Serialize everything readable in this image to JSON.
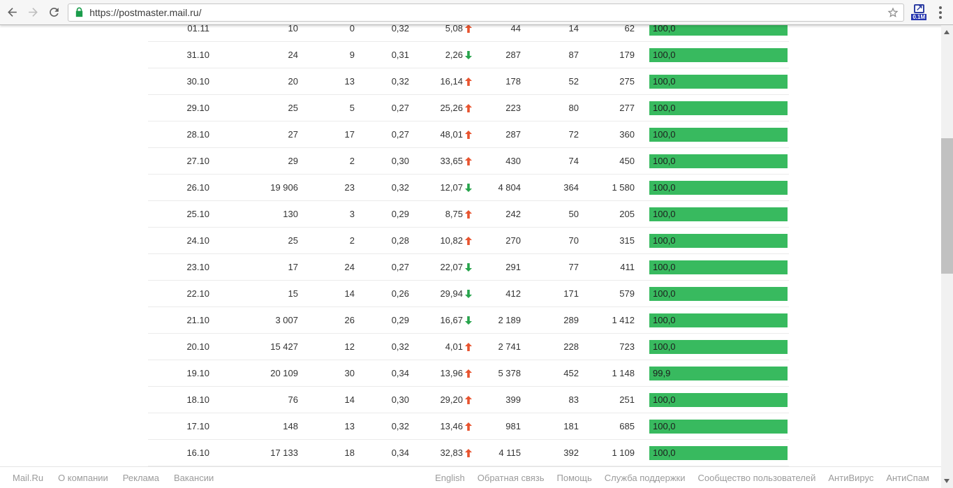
{
  "browser": {
    "url": "https://postmaster.mail.ru/",
    "extension_badge": "0.1M"
  },
  "colors": {
    "bar_green": "#38ba5f",
    "arrow_up": "#e8542f",
    "arrow_down": "#28a44c"
  },
  "table": {
    "rows": [
      {
        "date": "01.11",
        "c1": "10",
        "c2": "0",
        "c3": "0,32",
        "pct": "5,08",
        "pct_dir": "up",
        "c4": "44",
        "c5": "14",
        "c6": "62",
        "bar_label": "100,0",
        "bar_value": 100
      },
      {
        "date": "31.10",
        "c1": "24",
        "c2": "9",
        "c3": "0,31",
        "pct": "2,26",
        "pct_dir": "down",
        "c4": "287",
        "c5": "87",
        "c6": "179",
        "bar_label": "100,0",
        "bar_value": 100
      },
      {
        "date": "30.10",
        "c1": "20",
        "c2": "13",
        "c3": "0,32",
        "pct": "16,14",
        "pct_dir": "up",
        "c4": "178",
        "c5": "52",
        "c6": "275",
        "bar_label": "100,0",
        "bar_value": 100
      },
      {
        "date": "29.10",
        "c1": "25",
        "c2": "5",
        "c3": "0,27",
        "pct": "25,26",
        "pct_dir": "up",
        "c4": "223",
        "c5": "80",
        "c6": "277",
        "bar_label": "100,0",
        "bar_value": 100
      },
      {
        "date": "28.10",
        "c1": "27",
        "c2": "17",
        "c3": "0,27",
        "pct": "48,01",
        "pct_dir": "up",
        "c4": "287",
        "c5": "72",
        "c6": "360",
        "bar_label": "100,0",
        "bar_value": 100
      },
      {
        "date": "27.10",
        "c1": "29",
        "c2": "2",
        "c3": "0,30",
        "pct": "33,65",
        "pct_dir": "up",
        "c4": "430",
        "c5": "74",
        "c6": "450",
        "bar_label": "100,0",
        "bar_value": 100
      },
      {
        "date": "26.10",
        "c1": "19 906",
        "c2": "23",
        "c3": "0,32",
        "pct": "12,07",
        "pct_dir": "down",
        "c4": "4 804",
        "c5": "364",
        "c6": "1 580",
        "bar_label": "100,0",
        "bar_value": 100
      },
      {
        "date": "25.10",
        "c1": "130",
        "c2": "3",
        "c3": "0,29",
        "pct": "8,75",
        "pct_dir": "up",
        "c4": "242",
        "c5": "50",
        "c6": "205",
        "bar_label": "100,0",
        "bar_value": 100
      },
      {
        "date": "24.10",
        "c1": "25",
        "c2": "2",
        "c3": "0,28",
        "pct": "10,82",
        "pct_dir": "up",
        "c4": "270",
        "c5": "70",
        "c6": "315",
        "bar_label": "100,0",
        "bar_value": 100
      },
      {
        "date": "23.10",
        "c1": "17",
        "c2": "24",
        "c3": "0,27",
        "pct": "22,07",
        "pct_dir": "down",
        "c4": "291",
        "c5": "77",
        "c6": "411",
        "bar_label": "100,0",
        "bar_value": 100
      },
      {
        "date": "22.10",
        "c1": "15",
        "c2": "14",
        "c3": "0,26",
        "pct": "29,94",
        "pct_dir": "down",
        "c4": "412",
        "c5": "171",
        "c6": "579",
        "bar_label": "100,0",
        "bar_value": 100
      },
      {
        "date": "21.10",
        "c1": "3 007",
        "c2": "26",
        "c3": "0,29",
        "pct": "16,67",
        "pct_dir": "down",
        "c4": "2 189",
        "c5": "289",
        "c6": "1 412",
        "bar_label": "100,0",
        "bar_value": 100
      },
      {
        "date": "20.10",
        "c1": "15 427",
        "c2": "12",
        "c3": "0,32",
        "pct": "4,01",
        "pct_dir": "up",
        "c4": "2 741",
        "c5": "228",
        "c6": "723",
        "bar_label": "100,0",
        "bar_value": 100
      },
      {
        "date": "19.10",
        "c1": "20 109",
        "c2": "30",
        "c3": "0,34",
        "pct": "13,96",
        "pct_dir": "up",
        "c4": "5 378",
        "c5": "452",
        "c6": "1 148",
        "bar_label": "99,9",
        "bar_value": 99.9
      },
      {
        "date": "18.10",
        "c1": "76",
        "c2": "14",
        "c3": "0,30",
        "pct": "29,20",
        "pct_dir": "up",
        "c4": "399",
        "c5": "83",
        "c6": "251",
        "bar_label": "100,0",
        "bar_value": 100
      },
      {
        "date": "17.10",
        "c1": "148",
        "c2": "13",
        "c3": "0,32",
        "pct": "13,46",
        "pct_dir": "up",
        "c4": "981",
        "c5": "181",
        "c6": "685",
        "bar_label": "100,0",
        "bar_value": 100
      },
      {
        "date": "16.10",
        "c1": "17 133",
        "c2": "18",
        "c3": "0,34",
        "pct": "32,83",
        "pct_dir": "up",
        "c4": "4 115",
        "c5": "392",
        "c6": "1 109",
        "bar_label": "100,0",
        "bar_value": 100
      }
    ]
  },
  "footer": {
    "left": [
      "Mail.Ru",
      "О компании",
      "Реклама",
      "Вакансии"
    ],
    "right": [
      "English",
      "Обратная связь",
      "Помощь",
      "Служба поддержки",
      "Сообщество пользователей",
      "АнтиВирус",
      "АнтиСпам"
    ]
  }
}
